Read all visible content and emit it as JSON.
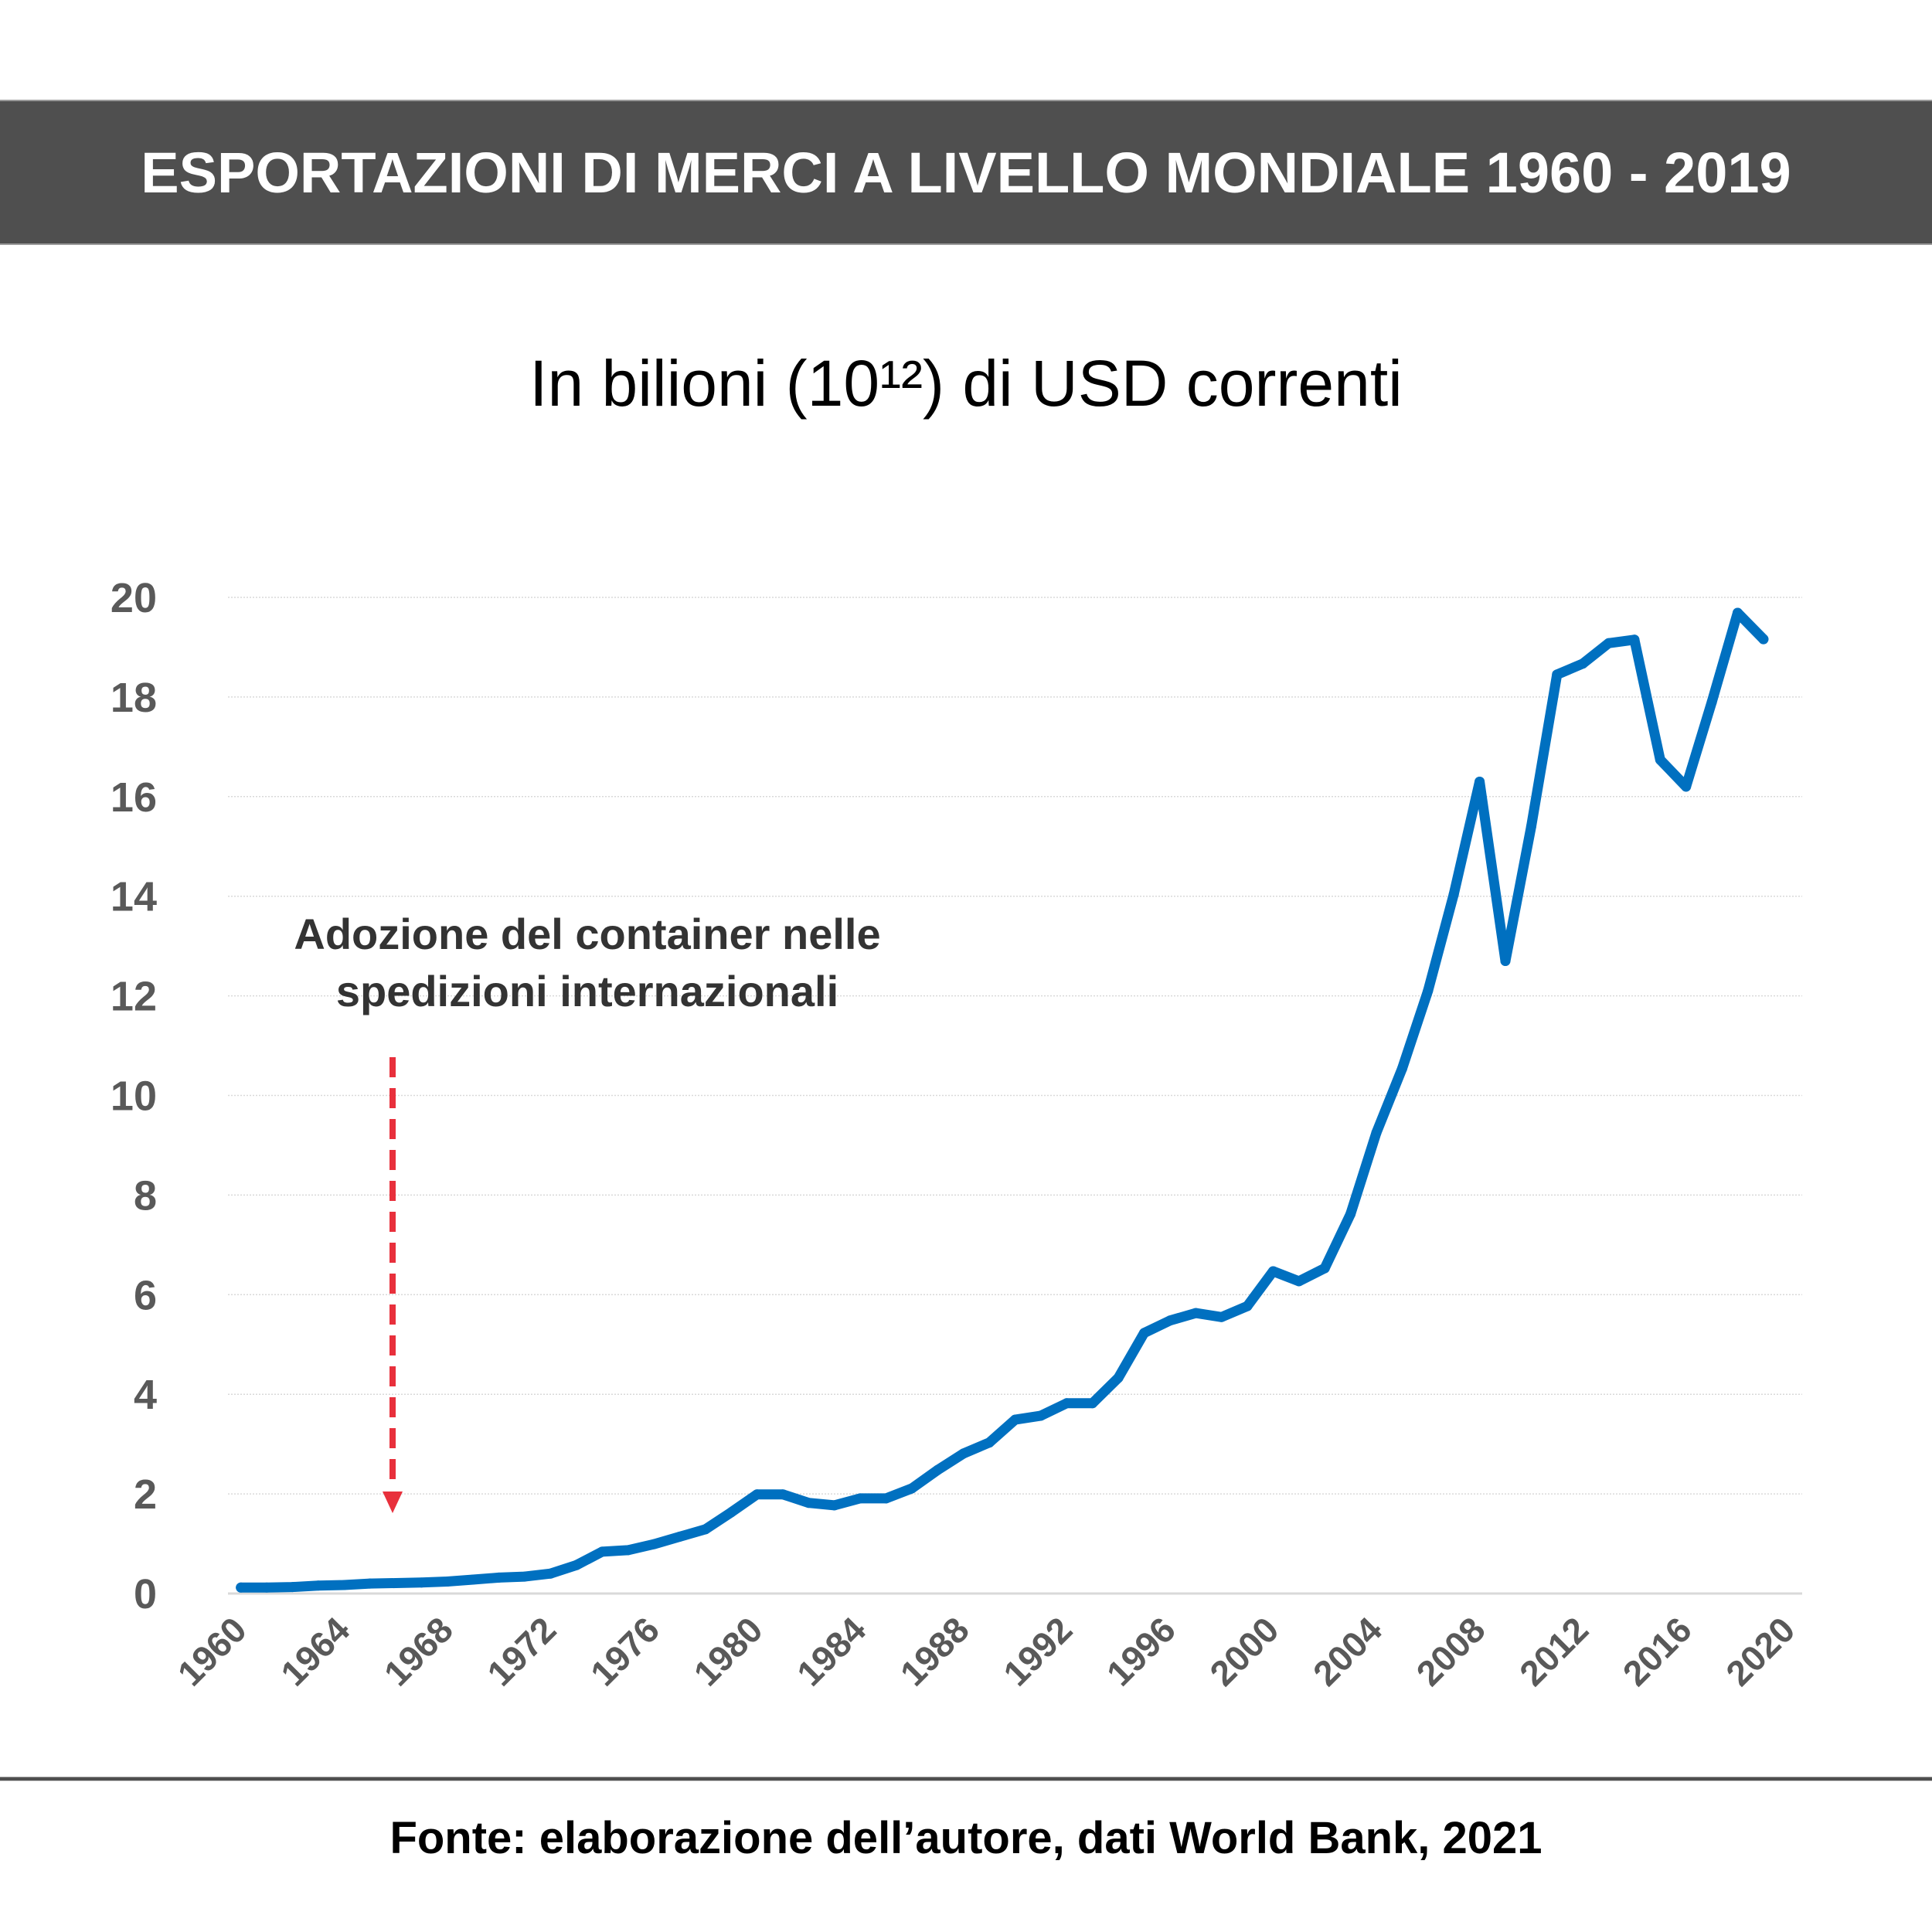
{
  "header": {
    "title": "ESPORTAZIONI DI MERCI A LIVELLO MONDIALE 1960 - 2019"
  },
  "subtitle": "In bilioni (10¹²) di USD correnti",
  "footer": {
    "source": "Fonte: elaborazione dell’autore, dati World Bank, 2021"
  },
  "colors": {
    "line": "#0070c0",
    "arrow": "#e8303c",
    "title_bar": "#4f4f4f",
    "axis_labels": "#595959",
    "annotation": "#333333",
    "gridline": "#d9d9d9"
  },
  "chart_data": {
    "type": "line",
    "title": "ESPORTAZIONI DI MERCI A LIVELLO MONDIALE 1960 - 2019",
    "subtitle": "In bilioni (10¹²) di USD correnti",
    "xlabel": "",
    "ylabel": "",
    "ylim": [
      0,
      20
    ],
    "yticks": [
      "0",
      "2",
      "4",
      "6",
      "8",
      "10",
      "12",
      "14",
      "16",
      "18",
      "20"
    ],
    "xlim": [
      1960,
      2020
    ],
    "xticks": [
      "1960",
      "1964",
      "1968",
      "1972",
      "1976",
      "1980",
      "1984",
      "1988",
      "1992",
      "1996",
      "2000",
      "2004",
      "2008",
      "2012",
      "2016",
      "2020"
    ],
    "grid": "horizontal",
    "legend": "none",
    "x": [
      1960,
      1961,
      1962,
      1963,
      1964,
      1965,
      1966,
      1967,
      1968,
      1969,
      1970,
      1971,
      1972,
      1973,
      1974,
      1975,
      1976,
      1977,
      1978,
      1979,
      1980,
      1981,
      1982,
      1983,
      1984,
      1985,
      1986,
      1987,
      1988,
      1989,
      1990,
      1991,
      1992,
      1993,
      1994,
      1995,
      1996,
      1997,
      1998,
      1999,
      2000,
      2001,
      2002,
      2003,
      2004,
      2005,
      2006,
      2007,
      2008,
      2009,
      2010,
      2011,
      2012,
      2013,
      2014,
      2015,
      2016,
      2017,
      2018,
      2019
    ],
    "series": [
      {
        "name": "Esportazioni di merci (bilioni USD correnti)",
        "values": [
          0.12,
          0.12,
          0.13,
          0.16,
          0.17,
          0.2,
          0.21,
          0.22,
          0.24,
          0.28,
          0.32,
          0.34,
          0.4,
          0.57,
          0.84,
          0.87,
          0.99,
          1.14,
          1.29,
          1.63,
          1.99,
          1.99,
          1.82,
          1.77,
          1.91,
          1.91,
          2.11,
          2.48,
          2.81,
          3.03,
          3.49,
          3.57,
          3.82,
          3.82,
          4.33,
          5.23,
          5.48,
          5.63,
          5.55,
          5.77,
          6.47,
          6.27,
          6.53,
          7.62,
          9.25,
          10.54,
          12.1,
          14.04,
          16.3,
          12.7,
          15.4,
          18.45,
          18.67,
          19.08,
          19.15,
          16.74,
          16.2,
          17.9,
          19.69,
          19.16
        ]
      }
    ],
    "annotations": [
      {
        "text_lines": [
          "Adozione del container nelle",
          "spedizioni internazionali"
        ],
        "arrow_year": 1966,
        "arrow_style": "dashed-down"
      }
    ]
  }
}
